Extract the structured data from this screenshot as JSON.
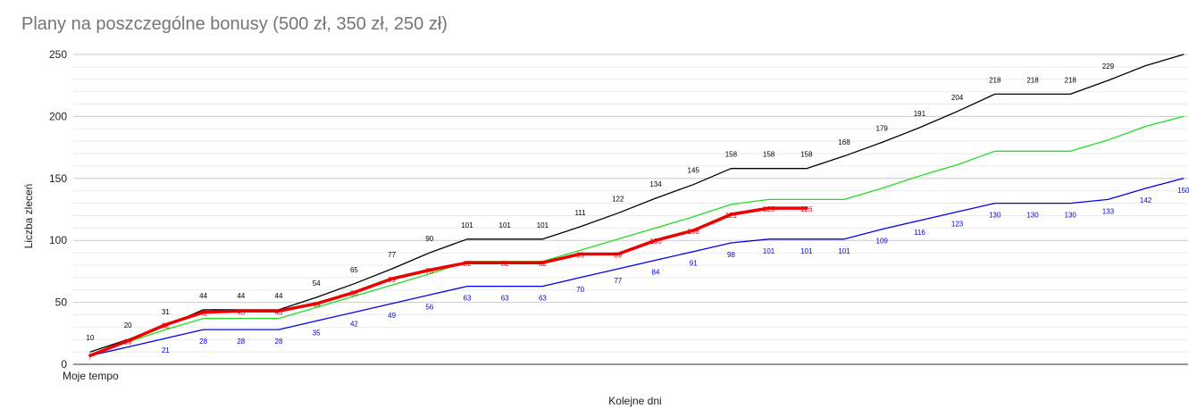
{
  "chart_data": {
    "type": "line",
    "title": "Plany na poszczególne bonusy (500 zł, 350 zł, 250 zł)",
    "xlabel": "Kolejne dni",
    "ylabel": "Liczba zleceń",
    "x_first_tick_label": "Moje tempo",
    "ylim": [
      0,
      250
    ],
    "y_ticks": [
      "0",
      "50",
      "100",
      "150",
      "200",
      "250"
    ],
    "grid": true,
    "series": [
      {
        "color": "#000000",
        "values": [
          10,
          20,
          31,
          44,
          44,
          44,
          54,
          65,
          77,
          90,
          101,
          101,
          101,
          111,
          122,
          134,
          145,
          158,
          158,
          158,
          168,
          179,
          191,
          204,
          218,
          218,
          218,
          229,
          241,
          250
        ],
        "labels": [
          "10",
          "20",
          "31",
          "44",
          "44",
          "44",
          "54",
          "65",
          "77",
          "90",
          "101",
          "101",
          "101",
          "111",
          "122",
          "134",
          "145",
          "158",
          "158",
          "158",
          "168",
          "179",
          "191",
          "204",
          "218",
          "218",
          "218",
          "229",
          "",
          ""
        ]
      },
      {
        "color": "#22dd22",
        "values": [
          8,
          18,
          28,
          37,
          37,
          37,
          46,
          55,
          64,
          73,
          83,
          83,
          83,
          92,
          101,
          110,
          119,
          129,
          133,
          133,
          133,
          142,
          152,
          161,
          172,
          172,
          172,
          181,
          192,
          200
        ],
        "labels": []
      },
      {
        "color": "#0000ee",
        "values": [
          7,
          14,
          21,
          28,
          28,
          28,
          35,
          42,
          49,
          56,
          63,
          63,
          63,
          70,
          77,
          84,
          91,
          98,
          101,
          101,
          101,
          109,
          116,
          123,
          130,
          130,
          130,
          133,
          142,
          150
        ],
        "labels": [
          "",
          "",
          "21",
          "28",
          "28",
          "28",
          "35",
          "42",
          "49",
          "56",
          "63",
          "63",
          "63",
          "70",
          "77",
          "84",
          "91",
          "98",
          "101",
          "101",
          "101",
          "109",
          "116",
          "123",
          "130",
          "130",
          "130",
          "133",
          "142",
          "150"
        ]
      },
      {
        "color": "#ee0000",
        "values": [
          7,
          19,
          32,
          42,
          43,
          43,
          49,
          58,
          69,
          76,
          82,
          82,
          82,
          89,
          89,
          100,
          108,
          121,
          126,
          126
        ],
        "labels": [
          "7",
          "19",
          "32",
          "42",
          "43",
          "43",
          "49",
          "58",
          "69",
          "76",
          "82",
          "82",
          "82",
          "89",
          "89",
          "100",
          "108",
          "121",
          "126",
          "126"
        ]
      }
    ]
  }
}
